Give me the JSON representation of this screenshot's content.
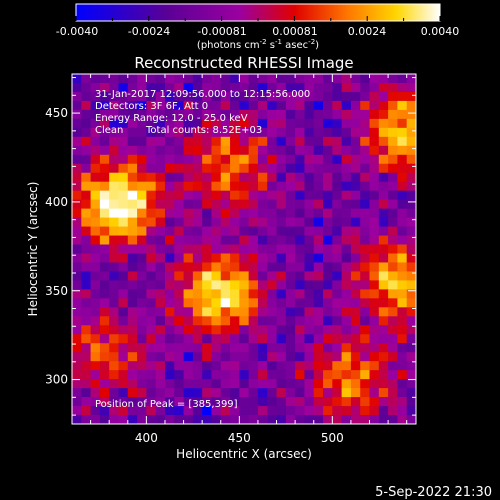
{
  "colorbar": {
    "ticks": [
      "-0.0040",
      "-0.0024",
      "-0.00081",
      "0.00081",
      "0.0024",
      "0.0040"
    ],
    "units_prefix": "(photons cm",
    "units_exp1": "-2",
    "units_mid": " s",
    "units_exp2": "-1",
    "units_mid2": " asec",
    "units_exp3": "-2",
    "units_suffix": ")"
  },
  "annotations": {
    "time_range": "31-Jan-2017 12:09:56.000 to 12:15:56.000",
    "detectors": "Detectors: 3F 6F, Att 0",
    "energy": "Energy Range: 12.0 - 25.0 keV",
    "clean_label": "Clean",
    "total_counts": "Total counts: 8.52E+03",
    "peak": "Position of Peak = [385,399]"
  },
  "footer": {
    "date": "5-Sep-2022 21:30"
  },
  "chart_data": {
    "type": "heatmap",
    "title": "Reconstructed RHESSI Image",
    "xlabel": "Heliocentric X (arcsec)",
    "ylabel": "Heliocentric Y (arcsec)",
    "xlim": [
      360,
      545
    ],
    "ylim": [
      275,
      472
    ],
    "xticks": [
      400,
      450,
      500
    ],
    "yticks": [
      300,
      350,
      400,
      450
    ],
    "colorscale_range": [
      -0.004,
      0.004
    ],
    "colormap": [
      "#0000ff",
      "#5a0096",
      "#9b00a0",
      "#e00000",
      "#ff7a00",
      "#ffd600",
      "#ffffff"
    ],
    "grid_cells": [
      37,
      39
    ],
    "hotspots": [
      {
        "x": 385,
        "y": 399,
        "amp": 1.0
      },
      {
        "x": 440,
        "y": 348,
        "amp": 0.85
      },
      {
        "x": 538,
        "y": 440,
        "amp": 0.7
      },
      {
        "x": 535,
        "y": 355,
        "amp": 0.7
      },
      {
        "x": 445,
        "y": 420,
        "amp": 0.55
      },
      {
        "x": 510,
        "y": 300,
        "amp": 0.55
      },
      {
        "x": 378,
        "y": 315,
        "amp": 0.45
      }
    ]
  }
}
